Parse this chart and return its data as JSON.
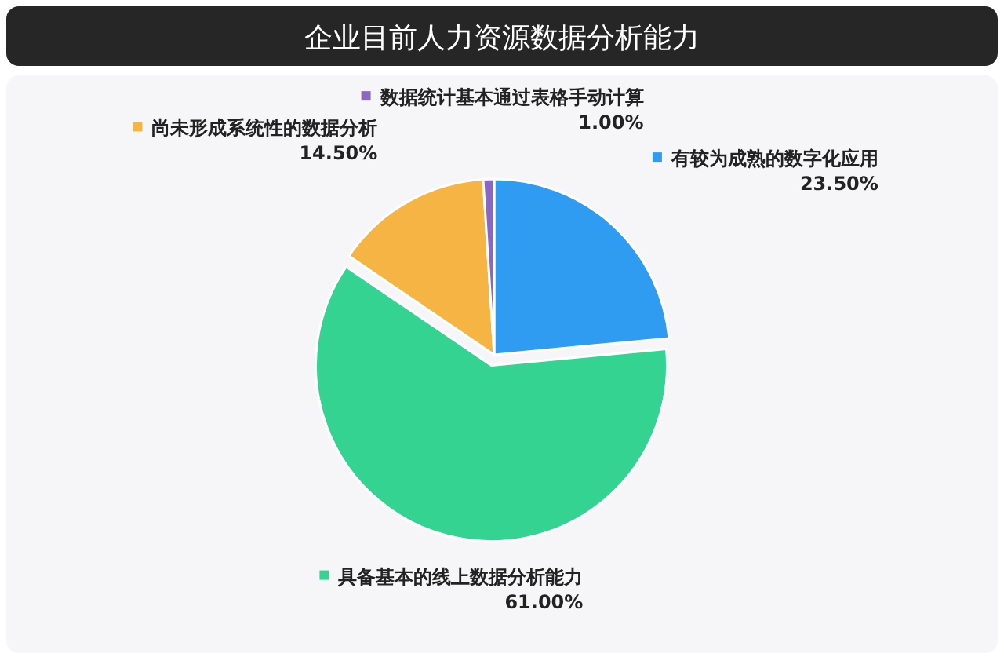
{
  "chart_data": {
    "type": "pie",
    "title": "企业目前人力资源数据分析能力",
    "categories": [
      "有较为成熟的数字化应用",
      "具备基本的线上数据分析能力",
      "尚未形成系统性的数据分析",
      "数据统计基本通过表格手动计算"
    ],
    "values": [
      23.5,
      61,
      14.5,
      1
    ],
    "value_labels": [
      "23.50%",
      "61.00%",
      "14.50%",
      "1.00%"
    ],
    "colors": [
      "#2f9cf2",
      "#35d392",
      "#f5b443",
      "#8a67c0"
    ],
    "legend": "top"
  }
}
